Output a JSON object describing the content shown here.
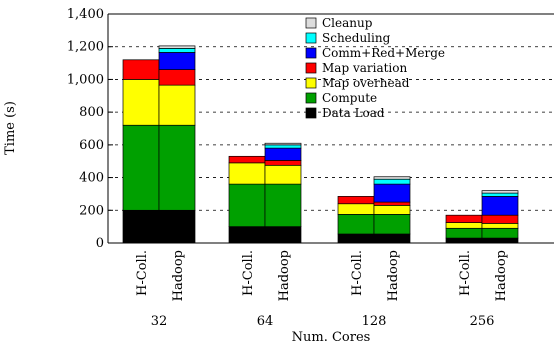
{
  "chart_data": {
    "type": "bar",
    "stacked": true,
    "xlabel": "Num. Cores",
    "ylabel": "Time (s)",
    "ylim": [
      0,
      1400
    ],
    "yticks": [
      0,
      200,
      400,
      600,
      800,
      1000,
      1200,
      1400
    ],
    "ytick_labels": [
      "0",
      "200",
      "400",
      "600",
      "800",
      "1,000",
      "1,200",
      "1,400"
    ],
    "grid": "horizontal dashed",
    "legend_position": "top-right",
    "groups": [
      "32",
      "64",
      "128",
      "256"
    ],
    "bar_labels": [
      "H-Coll.",
      "Hadoop"
    ],
    "series": [
      {
        "name": "Data Load",
        "color": "#000000",
        "values": [
          [
            200,
            200
          ],
          [
            100,
            100
          ],
          [
            55,
            55
          ],
          [
            30,
            30
          ]
        ]
      },
      {
        "name": "Compute",
        "color": "#00a000",
        "values": [
          [
            520,
            520
          ],
          [
            260,
            260
          ],
          [
            120,
            120
          ],
          [
            60,
            60
          ]
        ]
      },
      {
        "name": "Map overhead",
        "color": "#ffff00",
        "values": [
          [
            280,
            245
          ],
          [
            130,
            115
          ],
          [
            65,
            55
          ],
          [
            35,
            30
          ]
        ]
      },
      {
        "name": "Map variation",
        "color": "#ff0000",
        "values": [
          [
            120,
            95
          ],
          [
            40,
            30
          ],
          [
            45,
            20
          ],
          [
            45,
            50
          ]
        ]
      },
      {
        "name": "Comm+Red+Merge",
        "color": "#0000ff",
        "values": [
          [
            0,
            105
          ],
          [
            0,
            75
          ],
          [
            0,
            110
          ],
          [
            0,
            115
          ]
        ]
      },
      {
        "name": "Scheduling",
        "color": "#00ffff",
        "values": [
          [
            0,
            25
          ],
          [
            0,
            20
          ],
          [
            0,
            30
          ],
          [
            0,
            20
          ]
        ]
      },
      {
        "name": "Cleanup",
        "color": "#dddddd",
        "values": [
          [
            0,
            15
          ],
          [
            0,
            10
          ],
          [
            0,
            15
          ],
          [
            0,
            15
          ]
        ]
      }
    ]
  }
}
